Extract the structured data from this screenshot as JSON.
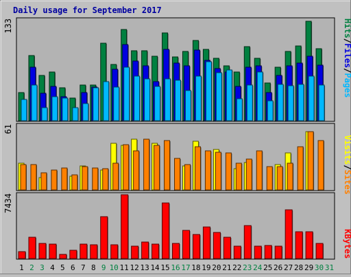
{
  "title": "Daily usage for September 2017",
  "colors": {
    "title": "#0000a0",
    "hits": "#008040",
    "files": "#0000e0",
    "pages": "#00b8ff",
    "visits": "#ffff00",
    "sites": "#ff8000",
    "kbytes": "#ff0000",
    "weekday": "#000000",
    "weekend": "#008040",
    "plot_bg": "#b3b3b3",
    "page_bg": "#c0c0c0"
  },
  "chart_data": [
    {
      "type": "bar",
      "name": "pages-files-hits",
      "ymax_label": "133",
      "ymax": 133,
      "legend": [
        "Hits",
        "Files",
        "Pages"
      ],
      "categories": [
        "1",
        "2",
        "3",
        "4",
        "5",
        "6",
        "7",
        "8",
        "9",
        "10",
        "11",
        "12",
        "13",
        "14",
        "15",
        "16",
        "17",
        "18",
        "19",
        "20",
        "21",
        "22",
        "23",
        "24",
        "25",
        "26",
        "27",
        "28",
        "29",
        "30",
        "31"
      ],
      "series": [
        {
          "name": "Hits",
          "values": [
            37,
            86,
            60,
            64,
            43,
            30,
            47,
            47,
            102,
            74,
            120,
            92,
            92,
            85,
            116,
            84,
            91,
            106,
            94,
            82,
            72,
            64,
            98,
            82,
            50,
            71,
            91,
            99,
            131,
            95,
            0
          ]
        },
        {
          "name": "Files",
          "values": [
            0,
            71,
            36,
            45,
            32,
            0,
            37,
            44,
            0,
            68,
            100,
            79,
            72,
            52,
            94,
            76,
            72,
            93,
            80,
            69,
            64,
            45,
            71,
            72,
            37,
            60,
            72,
            76,
            85,
            73,
            0
          ]
        },
        {
          "name": "Pages",
          "values": [
            28,
            47,
            17,
            32,
            30,
            17,
            23,
            43,
            52,
            44,
            71,
            59,
            55,
            45,
            55,
            53,
            40,
            59,
            78,
            63,
            67,
            29,
            47,
            64,
            26,
            48,
            46,
            48,
            59,
            47,
            0
          ]
        }
      ]
    },
    {
      "type": "bar",
      "name": "visits-sites",
      "ymax_label": "61",
      "ymax": 61,
      "legend": [
        "Visits",
        "Sites"
      ],
      "categories": [
        "1",
        "2",
        "3",
        "4",
        "5",
        "6",
        "7",
        "8",
        "9",
        "10",
        "11",
        "12",
        "13",
        "14",
        "15",
        "16",
        "17",
        "18",
        "19",
        "20",
        "21",
        "22",
        "23",
        "24",
        "25",
        "26",
        "27",
        "28",
        "29",
        "30",
        "31"
      ],
      "series": [
        {
          "name": "Visits",
          "values": [
            25,
            0,
            12,
            0,
            0,
            13,
            23,
            0,
            19,
            44,
            42,
            48,
            0,
            44,
            0,
            0,
            23,
            46,
            0,
            38,
            0,
            20,
            26,
            0,
            0,
            24,
            35,
            0,
            55,
            0,
            0
          ]
        },
        {
          "name": "Sites",
          "values": [
            24,
            24,
            16,
            19,
            21,
            14,
            22,
            21,
            20,
            25,
            43,
            37,
            48,
            42,
            47,
            30,
            24,
            41,
            37,
            36,
            35,
            25,
            29,
            37,
            22,
            22,
            25,
            41,
            55,
            47,
            0
          ]
        }
      ]
    },
    {
      "type": "bar",
      "name": "kbytes",
      "ymax_label": "7434",
      "ymax": 7434,
      "legend": [
        "KBytes"
      ],
      "categories": [
        "1",
        "2",
        "3",
        "4",
        "5",
        "6",
        "7",
        "8",
        "9",
        "10",
        "11",
        "12",
        "13",
        "14",
        "15",
        "16",
        "17",
        "18",
        "19",
        "20",
        "21",
        "22",
        "23",
        "24",
        "25",
        "26",
        "27",
        "28",
        "29",
        "30",
        "31"
      ],
      "series": [
        {
          "name": "KBytes",
          "values": [
            790,
            2440,
            1760,
            1640,
            510,
            980,
            1640,
            1630,
            4850,
            1610,
            7434,
            1460,
            1950,
            1650,
            6510,
            1730,
            3270,
            2800,
            3690,
            3010,
            2510,
            1460,
            3830,
            1400,
            1500,
            1460,
            5650,
            3150,
            3150,
            1730,
            0
          ]
        }
      ]
    }
  ],
  "x_axis": {
    "labels": [
      "1",
      "2",
      "3",
      "4",
      "5",
      "6",
      "7",
      "8",
      "9",
      "10",
      "11",
      "12",
      "13",
      "14",
      "15",
      "16",
      "17",
      "18",
      "19",
      "20",
      "21",
      "22",
      "23",
      "24",
      "25",
      "26",
      "27",
      "28",
      "29",
      "30",
      "31"
    ],
    "weekend": [
      false,
      true,
      true,
      false,
      false,
      false,
      false,
      false,
      true,
      true,
      false,
      false,
      false,
      false,
      false,
      true,
      true,
      false,
      false,
      false,
      false,
      false,
      true,
      true,
      false,
      false,
      false,
      false,
      false,
      true,
      true
    ]
  }
}
